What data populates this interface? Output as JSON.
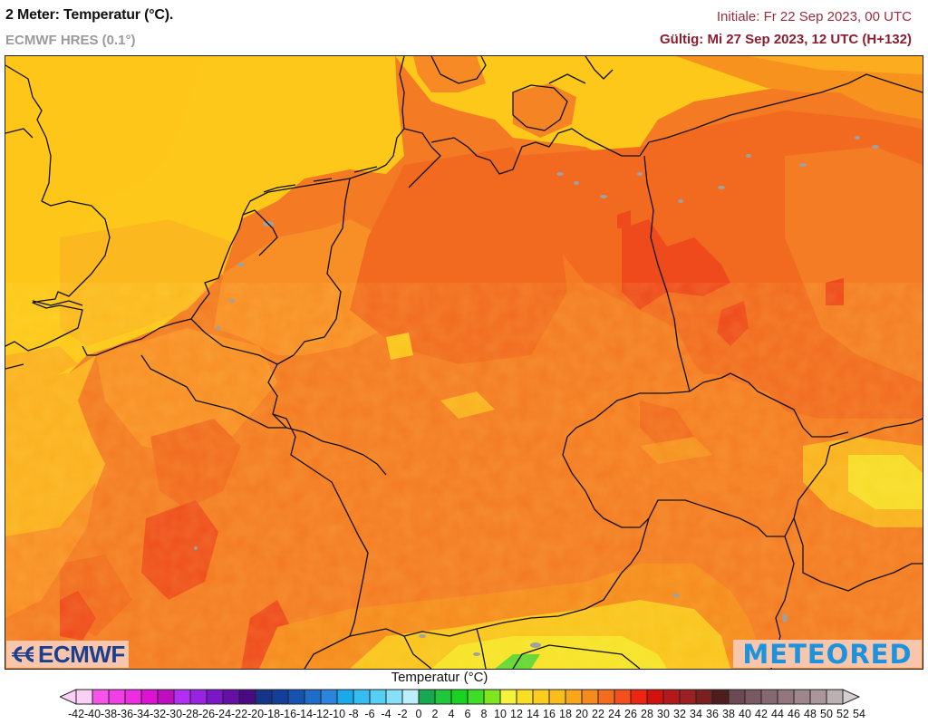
{
  "header": {
    "title": "2 Meter: Temperatur (°C).",
    "model": "ECMWF HRES (0.1°)",
    "init": "Initiale: Fr 22 Sep 2023, 00 UTC",
    "valid": "Gültig: Mi 27 Sep 2023, 12 UTC (H+132)"
  },
  "map": {
    "region": "Central Europe (Germany, Benelux, Czechia, Austria, Poland, northern France)",
    "variable": "2 m temperature",
    "colors": {
      "t14_16": "#fbbf1c",
      "t16_18": "#fdc81a",
      "t18_20": "#fbb020",
      "t20_22": "#f88e26",
      "t22_24": "#f47a23",
      "t24_26": "#f26a20",
      "t26_28": "#ee4a1c",
      "border": "#111111",
      "lakes": "#a0a0a0"
    }
  },
  "logos": {
    "left": "ECMWF",
    "right": "METEORED"
  },
  "legend": {
    "title": "Temperatur (°C)",
    "labels": [
      "-42",
      "-40",
      "-38",
      "-36",
      "-34",
      "-32",
      "-30",
      "-28",
      "-26",
      "-24",
      "-22",
      "-20",
      "-18",
      "-16",
      "-14",
      "-12",
      "-10",
      "-8",
      "-6",
      "-4",
      "-2",
      "0",
      "2",
      "4",
      "6",
      "8",
      "10",
      "12",
      "14",
      "16",
      "18",
      "20",
      "22",
      "24",
      "26",
      "28",
      "30",
      "32",
      "34",
      "36",
      "38",
      "40",
      "42",
      "44",
      "46",
      "48",
      "50",
      "52",
      "54"
    ],
    "colors": [
      "#fbd0f6",
      "#f654e9",
      "#f23ee7",
      "#ec2ee0",
      "#dd12d2",
      "#c00dbd",
      "#b22ef2",
      "#9a22e2",
      "#7c17c8",
      "#660fa6",
      "#4a0a82",
      "#15348a",
      "#123f9c",
      "#1553b0",
      "#1e6dc8",
      "#2b85de",
      "#1aa9ea",
      "#33bdf0",
      "#55cff4",
      "#85e0f8",
      "#bdeefb",
      "#18a84f",
      "#20c63c",
      "#18d420",
      "#3ede28",
      "#7ee61e",
      "#f5f23c",
      "#f9de24",
      "#fccd1c",
      "#fbbd1a",
      "#f9a61a",
      "#f68a1e",
      "#f46c1e",
      "#f5501c",
      "#ef2512",
      "#d1120d",
      "#b5181a",
      "#9a2022",
      "#7a2020",
      "#4e1e1e",
      "#6b4a52",
      "#7a5a62",
      "#866870",
      "#93767e",
      "#9e868c",
      "#ab979b",
      "#bcb0b3"
    ],
    "left_arrow_color": "#fbd0f6",
    "right_arrow_color": "#d4d0d2"
  }
}
